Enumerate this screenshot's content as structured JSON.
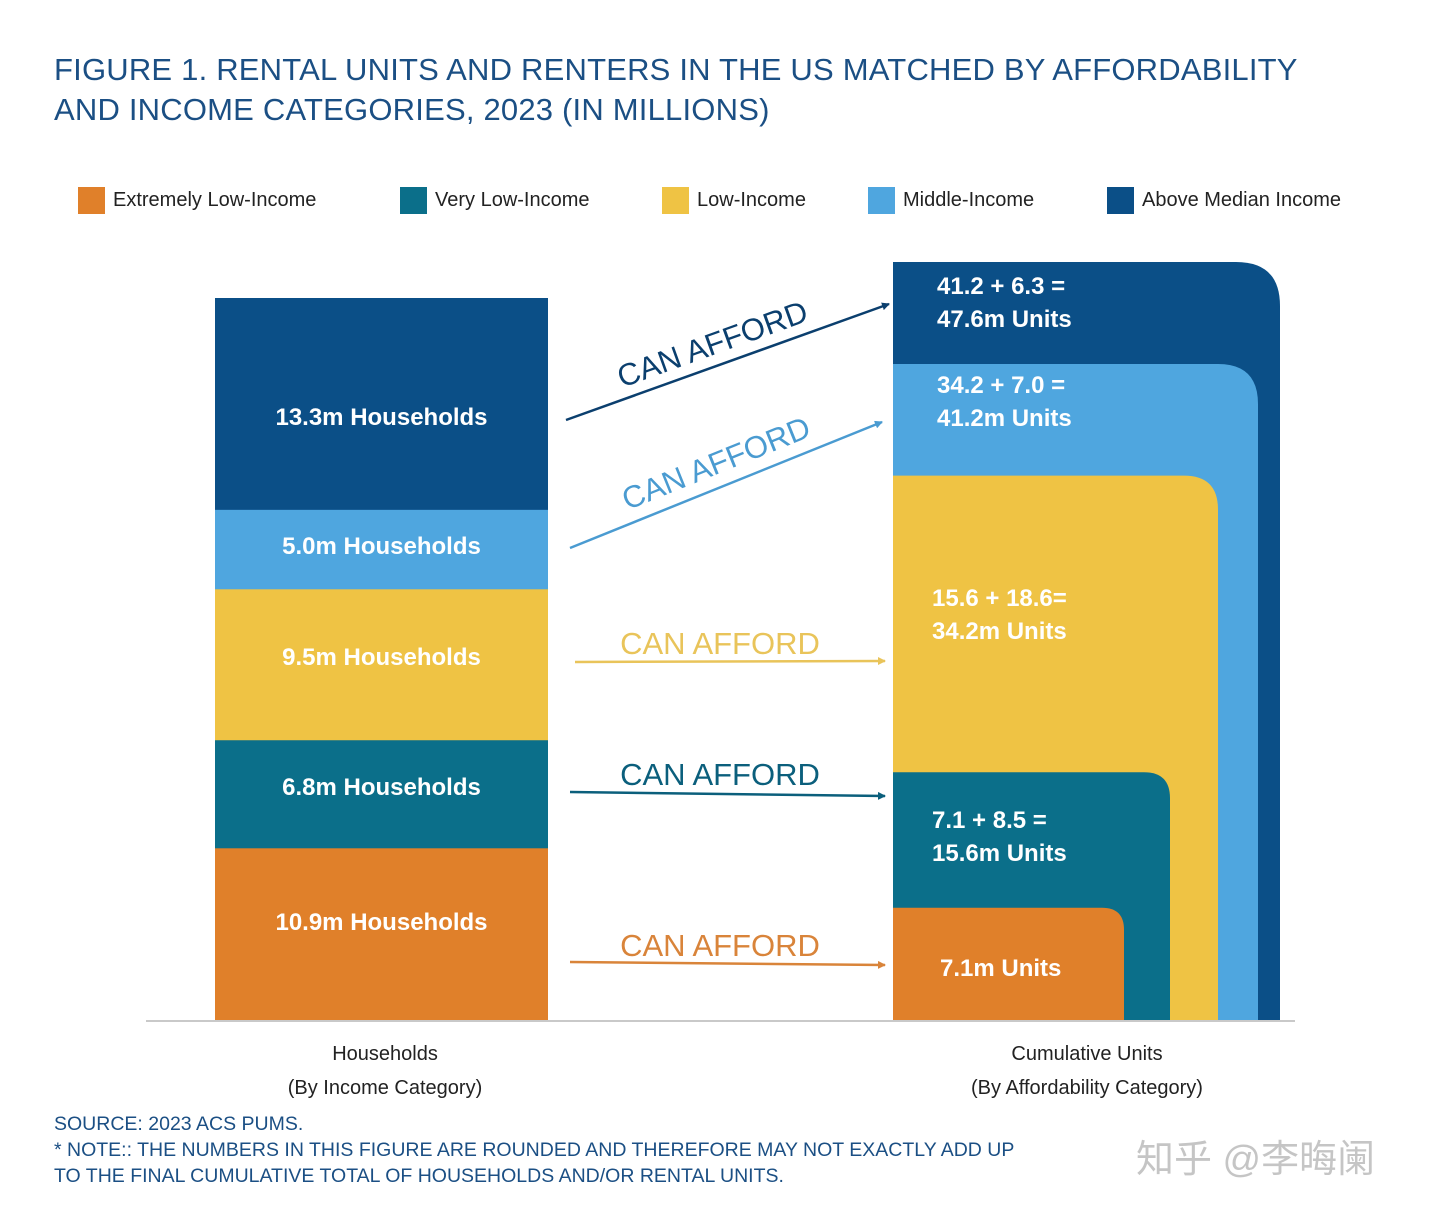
{
  "title_line1": "FIGURE 1. RENTAL UNITS AND RENTERS IN THE US MATCHED BY AFFORDABILITY",
  "title_line2": "AND INCOME CATEGORIES, 2023 (IN MILLIONS)",
  "legend": [
    {
      "label": "Extremely Low-Income",
      "color": "#e0802a"
    },
    {
      "label": "Very Low-Income",
      "color": "#0b6f8a"
    },
    {
      "label": "Low-Income",
      "color": "#efc344"
    },
    {
      "label": "Middle-Income",
      "color": "#4fa6df"
    },
    {
      "label": "Above Median Income",
      "color": "#0b4f87"
    }
  ],
  "chart_data": {
    "type": "bar",
    "categories": [
      "Extremely Low-Income",
      "Very Low-Income",
      "Low-Income",
      "Middle-Income",
      "Above Median Income"
    ],
    "households": {
      "values": [
        10.9,
        6.8,
        9.5,
        5.0,
        13.3
      ],
      "labels": [
        "10.9m Households",
        "6.8m Households",
        "9.5m Households",
        "5.0m Households",
        "13.3m Households"
      ],
      "caption_line1": "Households",
      "caption_line2": "(By Income Category)"
    },
    "cumulative_units": {
      "values": [
        7.1,
        15.6,
        34.2,
        41.2,
        47.6
      ],
      "label_lines": [
        [
          "7.1m Units"
        ],
        [
          "7.1 + 8.5 =",
          "15.6m Units"
        ],
        [
          "15.6 + 18.6=",
          "34.2m Units"
        ],
        [
          "34.2 + 7.0 =",
          "41.2m Units"
        ],
        [
          "41.2 + 6.3 =",
          "47.6m Units"
        ]
      ],
      "caption_line1": "Cumulative Units",
      "caption_line2": "(By Affordability Category)"
    },
    "arrow_label": "CAN AFFORD",
    "colors": [
      "#e0802a",
      "#0b6f8a",
      "#efc344",
      "#4fa6df",
      "#0b4f87"
    ],
    "arrow_colors": [
      "#d9843a",
      "#0b5f7c",
      "#e9c45a",
      "#4a9bd1",
      "#0b3f6e"
    ]
  },
  "footer_line1": "SOURCE: 2023 ACS PUMS.",
  "footer_line2": "* NOTE:: THE NUMBERS IN THIS FIGURE ARE ROUNDED AND THEREFORE MAY NOT EXACTLY ADD UP",
  "footer_line3": "TO THE FINAL CUMULATIVE TOTAL OF HOUSEHOLDS AND/OR RENTAL UNITS.",
  "watermark": "知乎 @李晦阑"
}
